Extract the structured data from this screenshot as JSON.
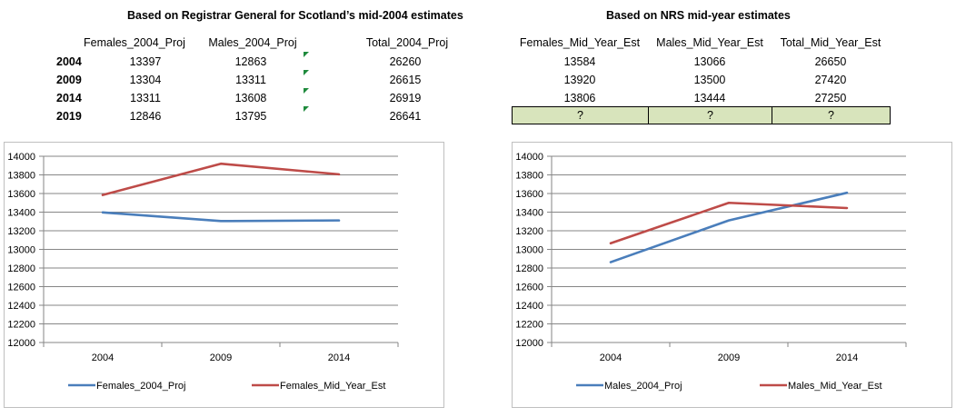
{
  "left_table": {
    "title": "Based on Registrar General for Scotland’s mid-2004 estimates",
    "headers": [
      "Females_2004_Proj",
      "Males_2004_Proj",
      "Total_2004_Proj"
    ],
    "rows": [
      {
        "year": "2004",
        "females": "13397",
        "males": "12863",
        "total": "26260"
      },
      {
        "year": "2009",
        "females": "13304",
        "males": "13311",
        "total": "26615"
      },
      {
        "year": "2014",
        "females": "13311",
        "males": "13608",
        "total": "26919"
      },
      {
        "year": "2019",
        "females": "12846",
        "males": "13795",
        "total": "26641"
      }
    ]
  },
  "right_table": {
    "title": "Based on NRS mid-year estimates",
    "headers": [
      "Females_Mid_Year_Est",
      "Males_Mid_Year_Est",
      "Total_Mid_Year_Est"
    ],
    "rows": [
      {
        "females": "13584",
        "males": "13066",
        "total": "26650"
      },
      {
        "females": "13920",
        "males": "13500",
        "total": "27420"
      },
      {
        "females": "13806",
        "males": "13444",
        "total": "27250"
      }
    ],
    "unknown_row": [
      "?",
      "?",
      "?"
    ],
    "unknown_fill": "#d8e4bc"
  },
  "colors": {
    "series_blue": "#4a7ebb",
    "series_red": "#be4b48",
    "gridline": "#868686",
    "comment_marker": "#1e8a3c"
  },
  "chart_data": [
    {
      "type": "line",
      "categories": [
        "2004",
        "2009",
        "2014"
      ],
      "series": [
        {
          "name": "Females_2004_Proj",
          "values": [
            13397,
            13304,
            13311
          ],
          "color": "#4a7ebb"
        },
        {
          "name": "Females_Mid_Year_Est",
          "values": [
            13584,
            13920,
            13806
          ],
          "color": "#be4b48"
        }
      ],
      "ylim": [
        12000,
        14000
      ],
      "yticks": [
        "14000",
        "13800",
        "13600",
        "13400",
        "13200",
        "13000",
        "12800",
        "12600",
        "12400",
        "12200",
        "12000"
      ],
      "grid": true,
      "legend": "bottom"
    },
    {
      "type": "line",
      "categories": [
        "2004",
        "2009",
        "2014"
      ],
      "series": [
        {
          "name": "Males_2004_Proj",
          "values": [
            12863,
            13311,
            13608
          ],
          "color": "#4a7ebb"
        },
        {
          "name": "Males_Mid_Year_Est",
          "values": [
            13066,
            13500,
            13444
          ],
          "color": "#be4b48"
        }
      ],
      "ylim": [
        12000,
        14000
      ],
      "yticks": [
        "14000",
        "13800",
        "13600",
        "13400",
        "13200",
        "13000",
        "12800",
        "12600",
        "12400",
        "12200",
        "12000"
      ],
      "grid": true,
      "legend": "bottom"
    }
  ]
}
